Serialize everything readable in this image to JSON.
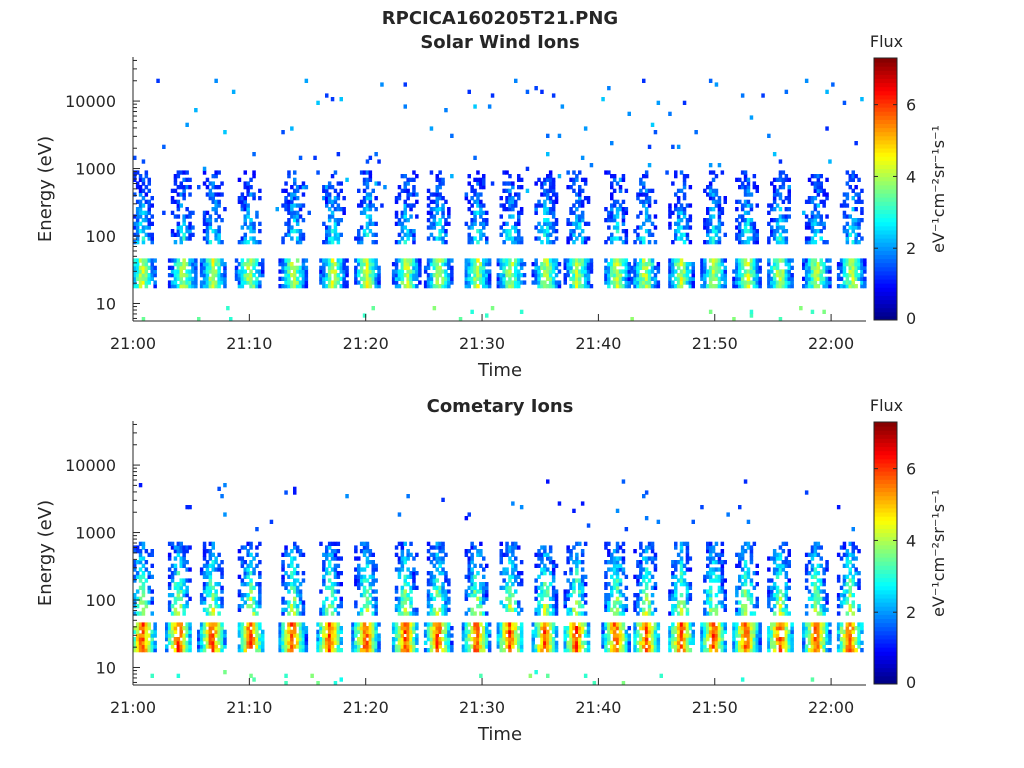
{
  "figure_title": "RPCICA160205T21.PNG",
  "colorbar": {
    "title": "Flux",
    "unit_label": "eV⁻¹cm⁻²sr⁻¹s⁻¹",
    "range": [
      0,
      7.3
    ],
    "ticks": [
      "0",
      "2",
      "4",
      "6"
    ],
    "tick_values": [
      0,
      2,
      4,
      6
    ],
    "colormap": "jet"
  },
  "chart_data": [
    {
      "type": "heatmap",
      "title": "Solar Wind Ions",
      "xlabel": "Time",
      "ylabel": "Energy (eV)",
      "x_ticks": [
        "21:00",
        "21:10",
        "21:20",
        "21:30",
        "21:40",
        "21:50",
        "22:00"
      ],
      "x_tick_minutes": [
        0,
        10,
        20,
        30,
        40,
        50,
        60
      ],
      "xlim_minutes": [
        0,
        63
      ],
      "y_ticks": [
        "10",
        "100",
        "1000",
        "10000"
      ],
      "y_tick_values": [
        10,
        100,
        1000,
        10000
      ],
      "ylim": [
        5.5,
        45000
      ],
      "yscale": "log",
      "pulse_minutes": [
        0.8,
        4.3,
        6.9,
        10.0,
        13.8,
        17.2,
        20.1,
        23.5,
        26.3,
        29.6,
        32.5,
        35.5,
        38.2,
        41.6,
        44.0,
        47.1,
        49.9,
        52.8,
        55.6,
        58.8,
        61.8
      ],
      "low_band_eV": [
        17,
        45
      ],
      "low_band_peak_flux": 4.2,
      "high_band_eV": [
        80,
        900
      ],
      "high_band_peak_flux": 3.0,
      "scatter_eV": [
        200,
        20000
      ],
      "scatter_flux": 1.8
    },
    {
      "type": "heatmap",
      "title": "Cometary Ions",
      "xlabel": "Time",
      "ylabel": "Energy (eV)",
      "x_ticks": [
        "21:00",
        "21:10",
        "21:20",
        "21:30",
        "21:40",
        "21:50",
        "22:00"
      ],
      "x_tick_minutes": [
        0,
        10,
        20,
        30,
        40,
        50,
        60
      ],
      "xlim_minutes": [
        0,
        63
      ],
      "y_ticks": [
        "10",
        "100",
        "1000",
        "10000"
      ],
      "y_tick_values": [
        10,
        100,
        1000,
        10000
      ],
      "ylim": [
        5.5,
        45000
      ],
      "yscale": "log",
      "pulse_minutes": [
        0.8,
        3.9,
        6.8,
        10.1,
        13.7,
        16.9,
        20.0,
        23.4,
        26.2,
        29.5,
        32.4,
        35.4,
        38.1,
        41.5,
        44.1,
        47.1,
        49.9,
        52.7,
        55.6,
        58.7,
        61.6
      ],
      "low_band_eV": [
        17,
        45
      ],
      "low_band_peak_flux": 6.0,
      "high_band_eV": [
        60,
        700
      ],
      "high_band_peak_flux": 4.5,
      "scatter_eV": [
        1000,
        6000
      ],
      "scatter_flux": 1.5
    }
  ]
}
